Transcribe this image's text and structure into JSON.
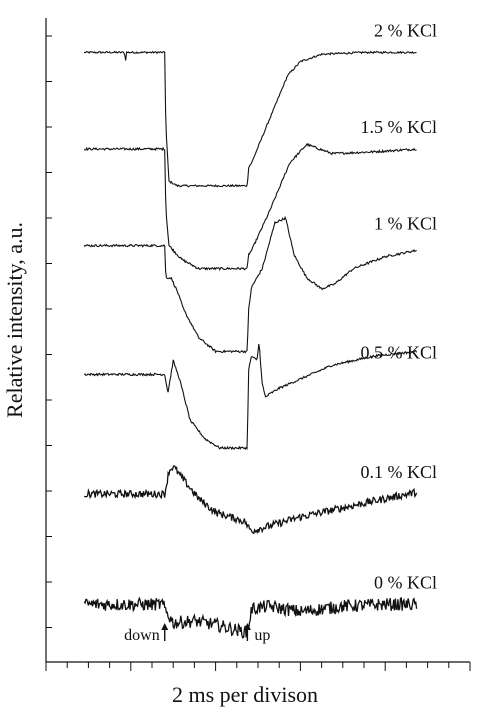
{
  "chart_data": {
    "type": "line",
    "title": "",
    "xlabel": "2 ms per divison",
    "ylabel": "Relative intensity, a.u.",
    "x_unit_label": "ms",
    "x_division_ms": 2,
    "xlim": [
      0,
      20
    ],
    "x_major_ticks": [
      0,
      4,
      8,
      12,
      16,
      20
    ],
    "ylim": [
      0,
      7
    ],
    "grid": false,
    "markers": [
      {
        "label": "down",
        "x": 5.6,
        "direction": "up"
      },
      {
        "label": "up",
        "x": 9.5,
        "direction": "up"
      }
    ],
    "series": [
      {
        "name": "2 % KCl",
        "baseline": 6.3,
        "x": [
          1.8,
          3.0,
          3.7,
          3.75,
          3.8,
          5.5,
          5.6,
          5.65,
          5.8,
          6.2,
          7.0,
          9.4,
          9.5,
          9.55,
          9.7,
          10.5,
          11.4,
          12.0,
          13.0,
          15.0,
          17.5
        ],
        "y": [
          6.3,
          6.3,
          6.3,
          6.2,
          6.3,
          6.3,
          6.3,
          5.5,
          4.9,
          4.85,
          4.85,
          4.85,
          4.85,
          5.05,
          5.1,
          5.55,
          6.05,
          6.2,
          6.28,
          6.3,
          6.3
        ],
        "noise": 0.01
      },
      {
        "name": "1.5 % KCl",
        "baseline": 5.25,
        "x": [
          1.8,
          5.5,
          5.6,
          5.65,
          5.8,
          6.4,
          7.2,
          9.4,
          9.5,
          9.55,
          9.7,
          10.5,
          11.5,
          12.3,
          13.5,
          15.5,
          17.5
        ],
        "y": [
          5.25,
          5.25,
          5.25,
          4.6,
          4.2,
          4.05,
          3.95,
          3.95,
          3.95,
          4.1,
          4.15,
          4.55,
          5.1,
          5.3,
          5.2,
          5.22,
          5.25
        ],
        "noise": 0.012
      },
      {
        "name": "1 % KCl",
        "baseline": 4.2,
        "x": [
          1.8,
          5.5,
          5.6,
          5.65,
          5.9,
          6.2,
          6.5,
          7.2,
          8.0,
          9.4,
          9.5,
          9.55,
          9.7,
          10.2,
          10.8,
          11.3,
          11.7,
          12.3,
          13.0,
          13.6,
          14.5,
          16.0,
          17.5
        ],
        "y": [
          4.2,
          4.2,
          4.2,
          3.85,
          3.85,
          3.7,
          3.5,
          3.2,
          3.05,
          3.05,
          3.05,
          3.5,
          3.75,
          3.95,
          4.45,
          4.5,
          4.1,
          3.85,
          3.73,
          3.78,
          3.95,
          4.08,
          4.15
        ],
        "noise": 0.012
      },
      {
        "name": "0.5 % KCl",
        "baseline": 2.8,
        "x": [
          1.8,
          5.5,
          5.6,
          5.75,
          6.0,
          6.3,
          6.8,
          7.5,
          8.2,
          9.4,
          9.5,
          9.55,
          9.7,
          9.95,
          10.05,
          10.2,
          10.35,
          10.5,
          11.0,
          12.0,
          13.5,
          15.5,
          17.5
        ],
        "y": [
          2.8,
          2.8,
          2.8,
          2.6,
          2.95,
          2.75,
          2.3,
          2.1,
          2.0,
          2.0,
          2.0,
          2.85,
          3.0,
          2.95,
          3.15,
          2.7,
          2.55,
          2.58,
          2.65,
          2.75,
          2.9,
          3.0,
          3.05
        ],
        "noise": 0.012
      },
      {
        "name": "0.1 % KCl",
        "baseline": 1.5,
        "x": [
          1.8,
          5.5,
          5.6,
          5.8,
          6.0,
          6.5,
          7.2,
          8.0,
          9.4,
          9.5,
          9.7,
          10.5,
          12.0,
          14.0,
          16.0,
          17.5
        ],
        "y": [
          1.5,
          1.5,
          1.5,
          1.75,
          1.8,
          1.65,
          1.45,
          1.3,
          1.2,
          1.15,
          1.1,
          1.15,
          1.25,
          1.35,
          1.45,
          1.52
        ],
        "noise": 0.04
      },
      {
        "name": "0 % KCl",
        "baseline": 0.3,
        "x": [
          1.8,
          5.5,
          5.6,
          6.0,
          7.0,
          8.0,
          9.0,
          9.4,
          9.5,
          9.7,
          10.5,
          12.0,
          14.0,
          16.0,
          17.5
        ],
        "y": [
          0.3,
          0.3,
          0.25,
          0.1,
          0.12,
          0.08,
          0.02,
          0.0,
          0.0,
          0.25,
          0.28,
          0.22,
          0.28,
          0.3,
          0.3
        ],
        "noise": 0.07
      }
    ]
  }
}
